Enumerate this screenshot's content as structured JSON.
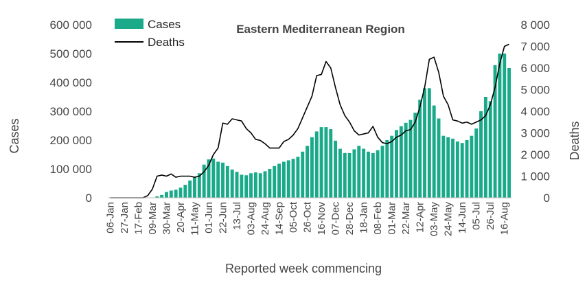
{
  "chart_data": {
    "type": "bar",
    "title": "Eastern Mediterranean Region",
    "xlabel": "Reported week commencing",
    "ylabel": "Cases",
    "y2label": "Deaths",
    "ylim": [
      0,
      600000
    ],
    "y2lim": [
      0,
      8000
    ],
    "yticks": [
      "0",
      "100 000",
      "200 000",
      "300 000",
      "400 000",
      "500 000",
      "600 000"
    ],
    "y2ticks": [
      "0",
      "1 000",
      "2 000",
      "3 000",
      "4 000",
      "5 000",
      "6 000",
      "7 000",
      "8 000"
    ],
    "xtick_labels": [
      "06-Jan",
      "27-Jan",
      "17-Feb",
      "09-Mar",
      "30-Mar",
      "20-Apr",
      "11-May",
      "01-Jun",
      "22-Jun",
      "13-Jul",
      "03-Aug",
      "24-Aug",
      "14-Sep",
      "05-Oct",
      "26-Oct",
      "16-Nov",
      "07-Dec",
      "28-Dec",
      "18-Jan",
      "08-Feb",
      "01-Mar",
      "22-Mar",
      "12-Apr",
      "03-May",
      "24-May",
      "14-Jun",
      "05-Jul",
      "26-Jul",
      "16-Aug"
    ],
    "xtick_every": 3,
    "bar_color": "#1aaa8a",
    "line_color": "#000000",
    "legend_position": "top-left",
    "series": [
      {
        "name": "Cases",
        "type": "bar",
        "axis": "left",
        "values": [
          0,
          0,
          0,
          0,
          0,
          0,
          0,
          0,
          0,
          1000,
          5000,
          10000,
          20000,
          25000,
          28000,
          35000,
          45000,
          60000,
          72000,
          85000,
          115000,
          133000,
          136000,
          125000,
          122000,
          110000,
          98000,
          90000,
          80000,
          78000,
          85000,
          88000,
          85000,
          92000,
          100000,
          110000,
          118000,
          125000,
          130000,
          135000,
          142000,
          160000,
          180000,
          210000,
          230000,
          245000,
          245000,
          238000,
          198000,
          170000,
          155000,
          155000,
          168000,
          180000,
          170000,
          160000,
          155000,
          165000,
          180000,
          200000,
          215000,
          235000,
          248000,
          260000,
          270000,
          295000,
          340000,
          380000,
          380000,
          320000,
          275000,
          215000,
          210000,
          205000,
          195000,
          190000,
          200000,
          215000,
          240000,
          300000,
          350000,
          335000,
          460000,
          500000,
          500000,
          450000
        ]
      },
      {
        "name": "Deaths",
        "type": "line",
        "axis": "right",
        "values": [
          0,
          0,
          0,
          0,
          0,
          0,
          0,
          0,
          100,
          400,
          1000,
          1050,
          1000,
          1100,
          950,
          1000,
          1000,
          1000,
          950,
          1000,
          1200,
          1500,
          2000,
          2300,
          3450,
          3400,
          3650,
          3600,
          3550,
          3200,
          3000,
          2700,
          2650,
          2500,
          2300,
          2300,
          2300,
          2600,
          2700,
          2900,
          3200,
          3700,
          4200,
          4700,
          5650,
          5700,
          6300,
          6000,
          5100,
          4300,
          3800,
          3500,
          3100,
          2900,
          2950,
          3000,
          3300,
          2800,
          2550,
          2500,
          2600,
          2800,
          2900,
          3100,
          3150,
          3500,
          4200,
          5100,
          6400,
          6500,
          5800,
          4700,
          4300,
          3600,
          3550,
          3450,
          3500,
          3400,
          3500,
          3600,
          3800,
          4300,
          5100,
          6200,
          7000,
          7100
        ]
      }
    ]
  }
}
